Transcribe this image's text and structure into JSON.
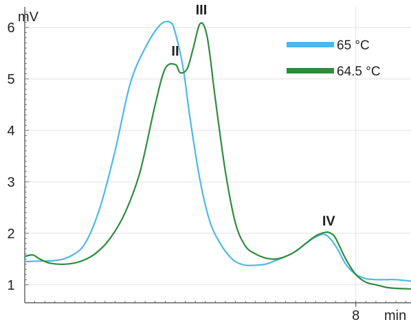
{
  "chart_data": {
    "type": "line",
    "title": "",
    "ylabel": "mV",
    "xlabel": "min",
    "x_ticks": [
      8
    ],
    "y_ticks": [
      1,
      2,
      3,
      4,
      5,
      6
    ],
    "xlim": [
      4.7,
      8.55
    ],
    "ylim": [
      0.65,
      6.4
    ],
    "grid": true,
    "legend_position": "top-right",
    "series": [
      {
        "name": "65 °C",
        "color": "#4db8e6",
        "x": [
          4.7,
          4.85,
          5.0,
          5.15,
          5.3,
          5.45,
          5.6,
          5.75,
          5.9,
          6.05,
          6.15,
          6.2,
          6.28,
          6.35,
          6.45,
          6.55,
          6.65,
          6.72,
          6.8,
          6.9,
          7.0,
          7.1,
          7.2,
          7.3,
          7.4,
          7.5,
          7.6,
          7.7,
          7.8,
          7.9,
          8.0,
          8.1,
          8.2,
          8.3,
          8.4,
          8.55
        ],
        "y": [
          1.45,
          1.46,
          1.47,
          1.55,
          1.8,
          2.5,
          3.6,
          4.9,
          5.6,
          6.05,
          6.1,
          5.9,
          5.2,
          4.2,
          3.0,
          2.2,
          1.8,
          1.6,
          1.45,
          1.38,
          1.38,
          1.4,
          1.47,
          1.55,
          1.65,
          1.8,
          1.93,
          1.97,
          1.75,
          1.4,
          1.2,
          1.12,
          1.1,
          1.1,
          1.1,
          1.07
        ]
      },
      {
        "name": "64.5 °C",
        "color": "#2e8b3c",
        "x": [
          4.7,
          4.78,
          4.85,
          4.95,
          5.1,
          5.25,
          5.4,
          5.55,
          5.7,
          5.85,
          6.0,
          6.1,
          6.2,
          6.25,
          6.32,
          6.38,
          6.45,
          6.52,
          6.6,
          6.7,
          6.8,
          6.9,
          7.0,
          7.1,
          7.2,
          7.3,
          7.4,
          7.5,
          7.6,
          7.7,
          7.75,
          7.8,
          7.9,
          8.0,
          8.1,
          8.2,
          8.3,
          8.4,
          8.55
        ],
        "y": [
          1.55,
          1.58,
          1.5,
          1.42,
          1.4,
          1.45,
          1.6,
          1.9,
          2.4,
          3.2,
          4.5,
          5.2,
          5.28,
          5.12,
          5.2,
          5.6,
          6.08,
          5.8,
          4.6,
          3.2,
          2.2,
          1.75,
          1.6,
          1.52,
          1.5,
          1.55,
          1.65,
          1.8,
          1.95,
          2.02,
          2.0,
          1.9,
          1.5,
          1.2,
          1.05,
          1.0,
          0.95,
          0.93,
          0.92
        ]
      }
    ],
    "annotations": [
      {
        "text": "II",
        "x": 6.2,
        "y": 5.45
      },
      {
        "text": "III",
        "x": 6.46,
        "y": 6.25
      },
      {
        "text": "IV",
        "x": 7.73,
        "y": 2.15
      }
    ]
  }
}
